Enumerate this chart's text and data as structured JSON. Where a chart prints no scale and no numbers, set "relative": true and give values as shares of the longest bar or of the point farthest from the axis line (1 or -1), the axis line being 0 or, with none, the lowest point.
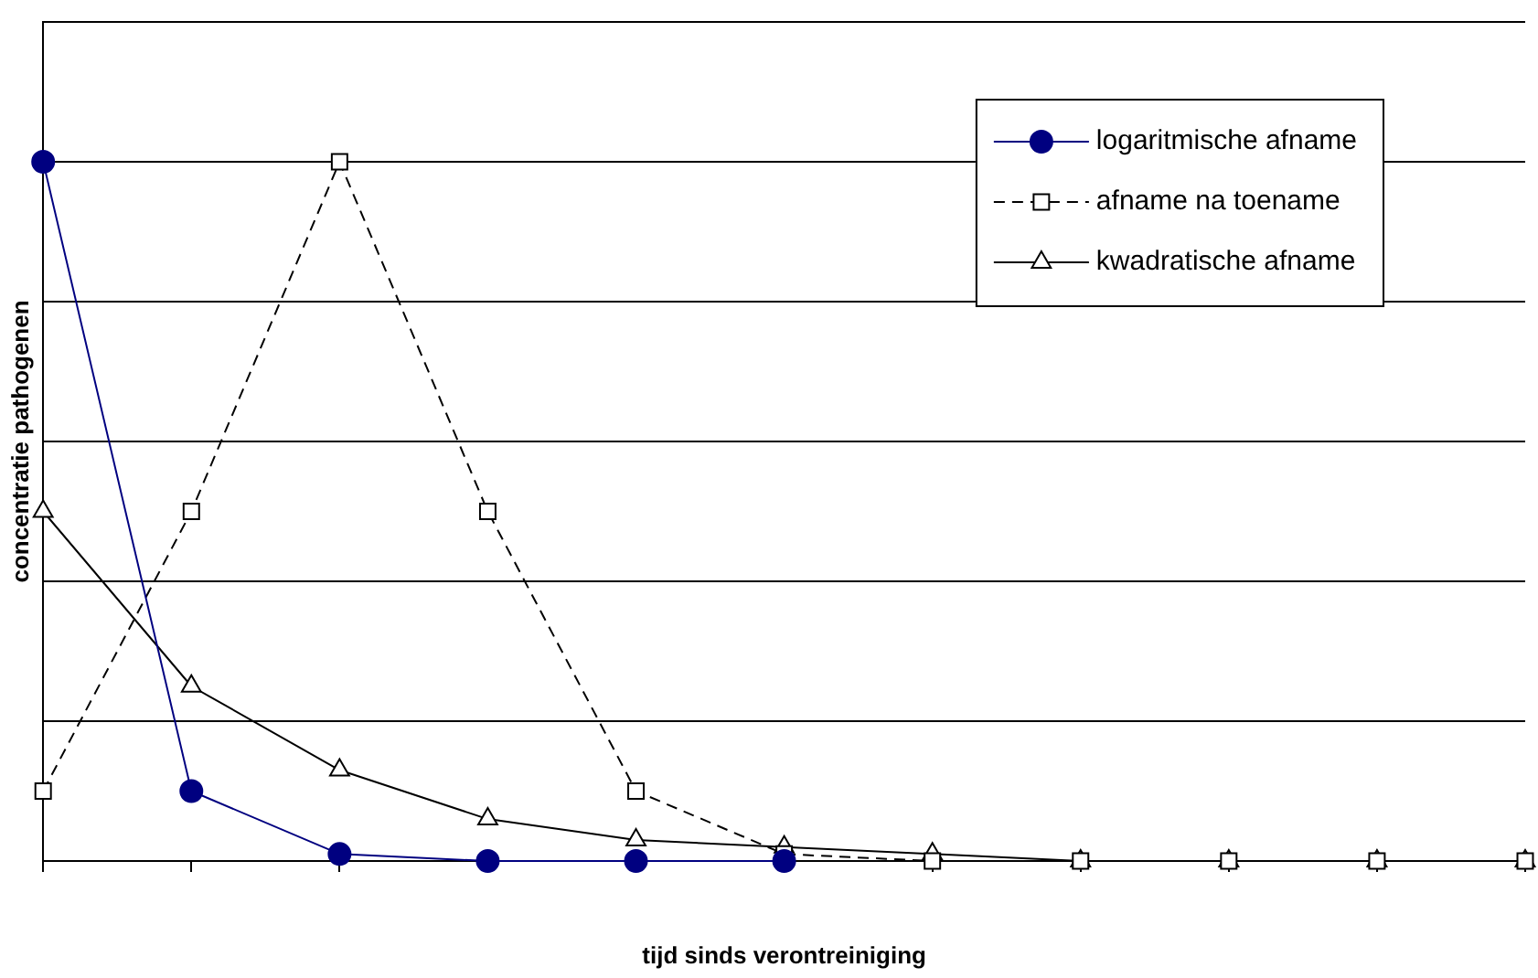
{
  "chart_data": {
    "type": "line",
    "xlabel": "tijd sinds verontreiniging",
    "ylabel": "concentratie pathogenen",
    "relative": true,
    "grid": "y",
    "legend": "top right",
    "categories": [
      null,
      null,
      null,
      null,
      null,
      null,
      null,
      null,
      null,
      null,
      null
    ],
    "series": [
      {
        "name": "logaritmische afname",
        "color": "#000080",
        "marker": "circle",
        "line_style": "solid",
        "values": [
          1,
          0.1,
          0.01,
          0,
          0,
          0,
          null,
          null,
          null,
          null,
          null
        ]
      },
      {
        "name": "afname na toename",
        "color": "#000000",
        "marker": "square",
        "line_style": "dashed",
        "values": [
          0.1,
          0.5,
          1,
          0.5,
          0.1,
          0.01,
          0,
          0,
          0,
          0,
          0
        ]
      },
      {
        "name": "kwadratische afname",
        "color": "#000000",
        "marker": "triangle",
        "line_style": "solid",
        "values": [
          0.5,
          0.25,
          0.13,
          0.06,
          0.03,
          0.02,
          0.01,
          0,
          0,
          0,
          0
        ]
      }
    ]
  }
}
